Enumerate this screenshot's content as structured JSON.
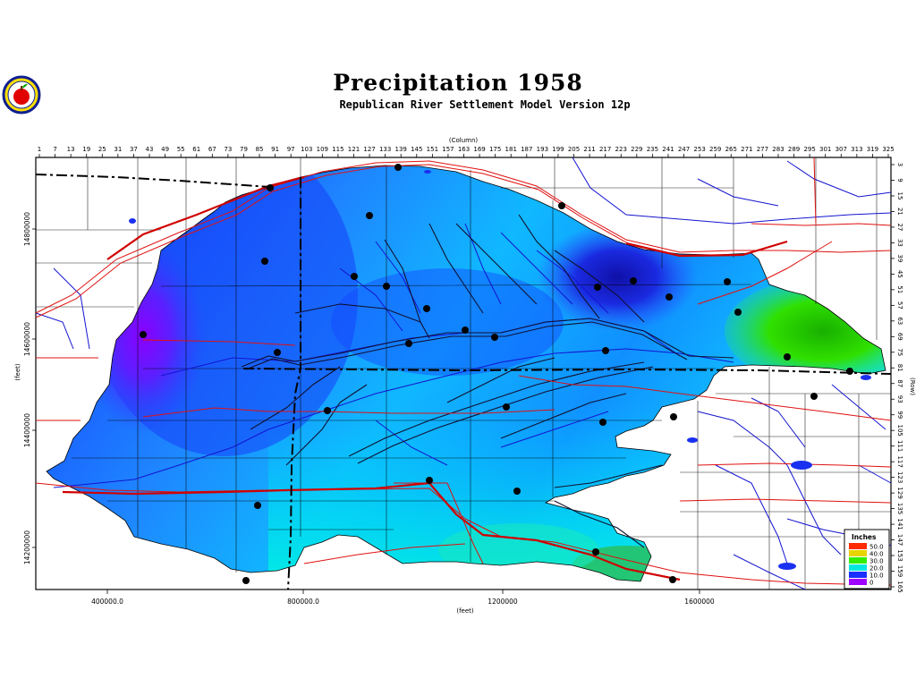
{
  "title": "Precipitation 1958",
  "subtitle": "Republican River Settlement Model Version 12p",
  "logo": {
    "icon": "apple-logo-icon"
  },
  "grid_axes": {
    "column_title": "(Column)",
    "row_title": "(Row)",
    "columns": [
      "1",
      "7",
      "13",
      "19",
      "25",
      "31",
      "37",
      "43",
      "49",
      "55",
      "61",
      "67",
      "73",
      "79",
      "85",
      "91",
      "97",
      "103",
      "109",
      "115",
      "121",
      "127",
      "133",
      "139",
      "145",
      "151",
      "157",
      "163",
      "169",
      "175",
      "181",
      "187",
      "193",
      "199",
      "205",
      "211",
      "217",
      "223",
      "229",
      "235",
      "241",
      "247",
      "253",
      "259",
      "265",
      "271",
      "277",
      "283",
      "289",
      "295",
      "301",
      "307",
      "313",
      "319",
      "325"
    ],
    "rows": [
      "3",
      "9",
      "15",
      "21",
      "27",
      "33",
      "39",
      "45",
      "51",
      "57",
      "63",
      "69",
      "75",
      "81",
      "87",
      "93",
      "99",
      "105",
      "111",
      "117",
      "123",
      "129",
      "135",
      "141",
      "147",
      "153",
      "159",
      "165"
    ]
  },
  "coord_axes": {
    "x_title": "(feet)",
    "y_title": "(feet)",
    "x_ticks": [
      "400000.0",
      "800000.0",
      "1200000",
      "1600000"
    ],
    "y_ticks": [
      "14800000",
      "14600000",
      "14400000",
      "14200000"
    ]
  },
  "legend": {
    "title": "Inches",
    "items": [
      {
        "label": "50.0",
        "color": "#ff2a00"
      },
      {
        "label": "40.0",
        "color": "#e8d400"
      },
      {
        "label": "30.0",
        "color": "#33ee00"
      },
      {
        "label": "20.0",
        "color": "#00e8e0"
      },
      {
        "label": "10.0",
        "color": "#1a2fff"
      },
      {
        "label": "0",
        "color": "#a000ff"
      }
    ]
  },
  "colors": {
    "frame": "#000000",
    "roads": "#e01010",
    "rivers": "#1414d0",
    "stations": "#000000",
    "state_line": "#000000"
  }
}
